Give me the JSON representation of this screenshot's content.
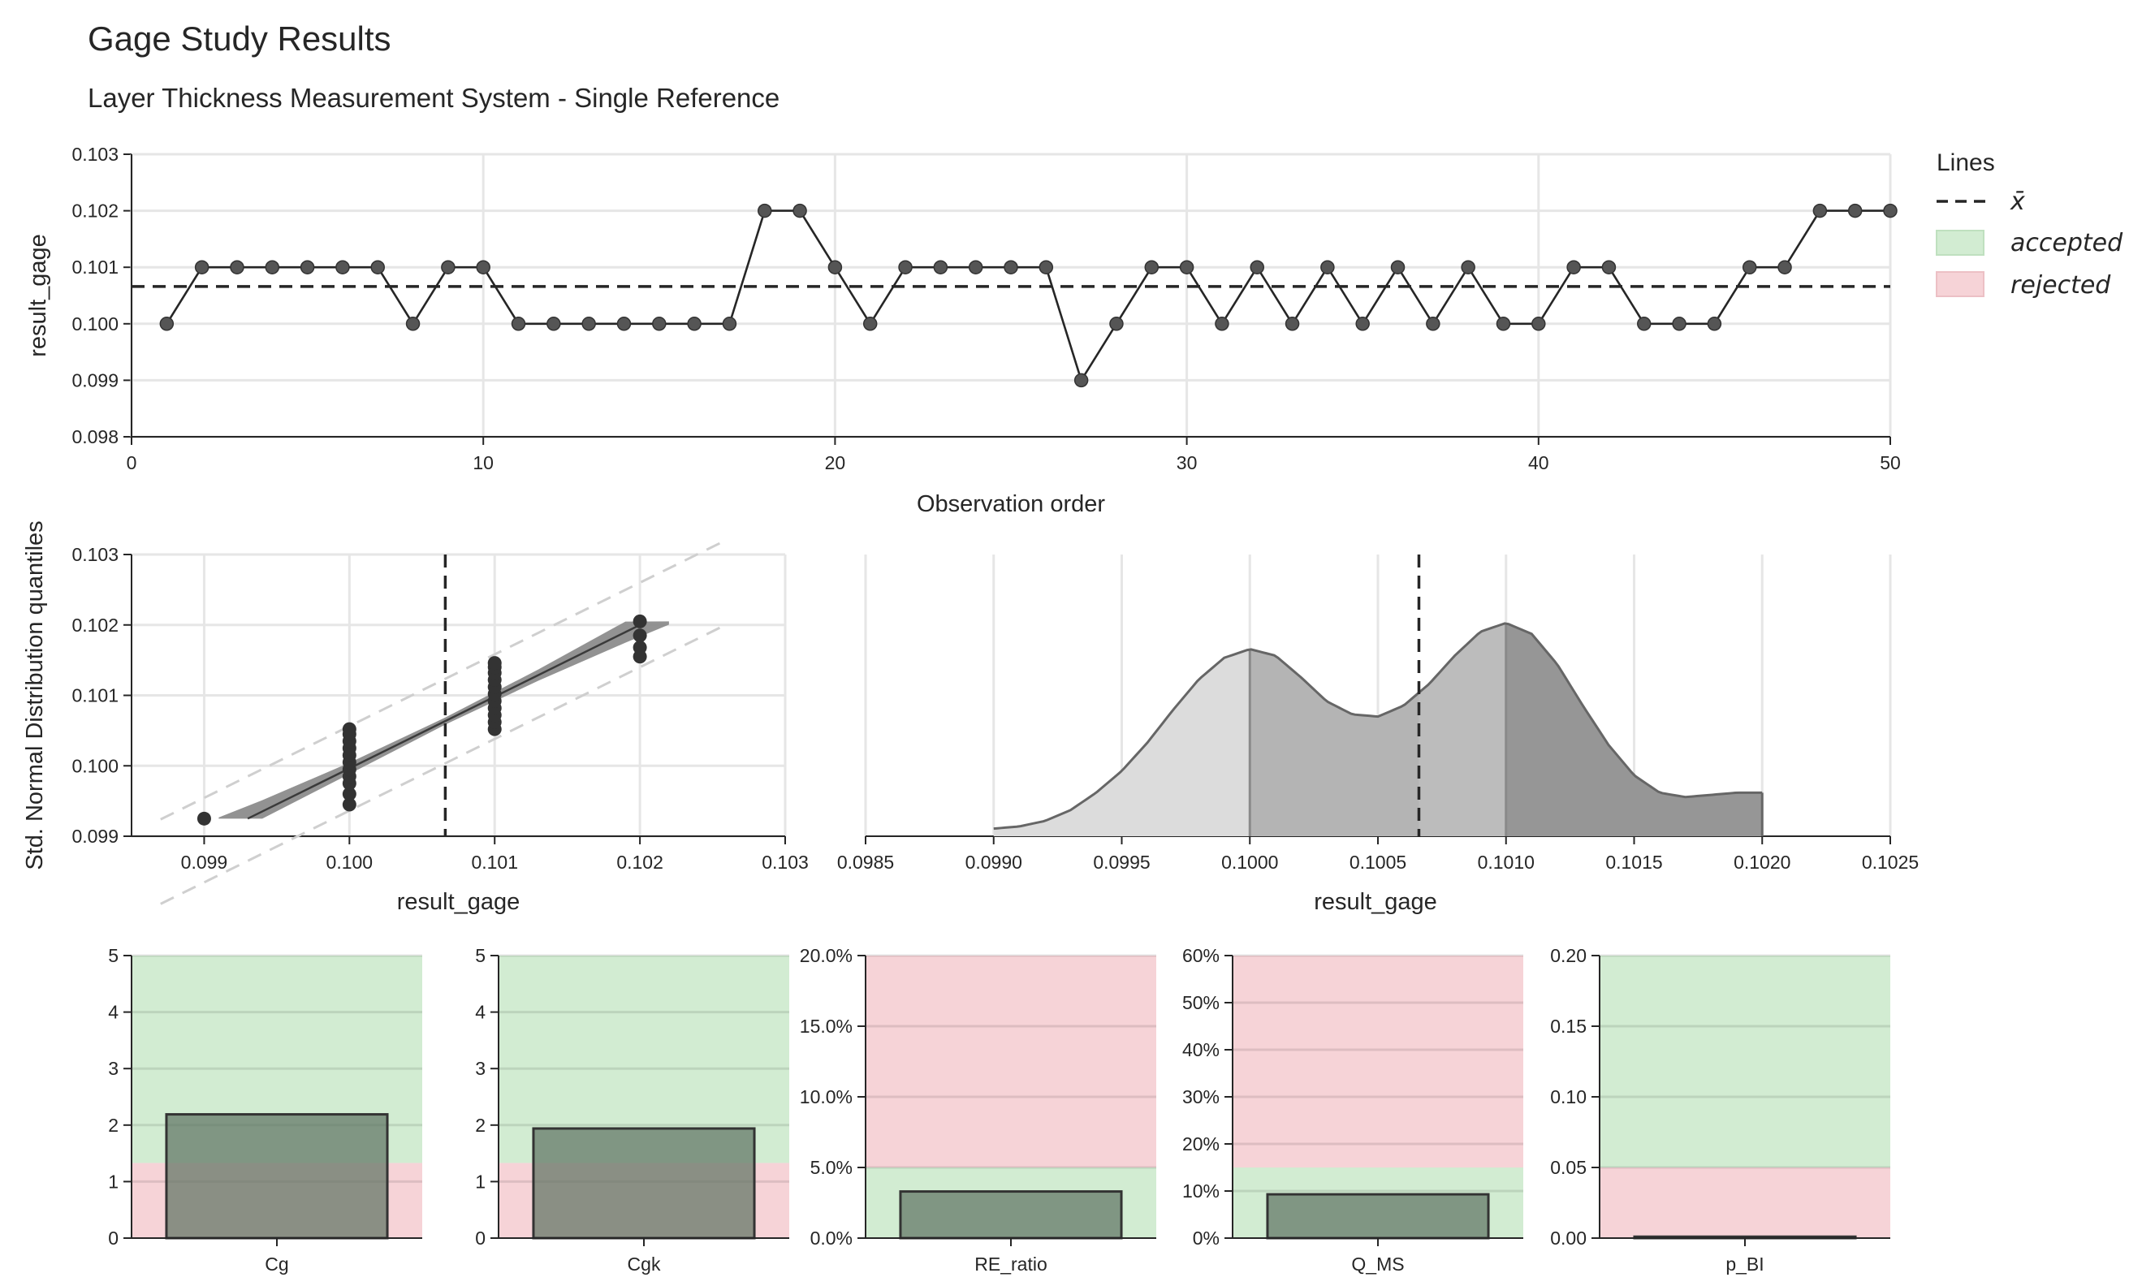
{
  "title": "Gage Study Results",
  "subtitle": "Layer Thickness Measurement System - Single Reference",
  "legend": {
    "title": "Lines",
    "items": [
      {
        "label": "x̄",
        "kind": "dashed-line",
        "color": "#262626"
      },
      {
        "label": "accepted",
        "kind": "patch",
        "color": "#d2ecd2"
      },
      {
        "label": "rejected",
        "kind": "patch",
        "color": "#f6d3d7"
      }
    ]
  },
  "colors": {
    "accepted": "#d2ecd2",
    "rejected": "#f6d3d7",
    "line": "#262626",
    "marker": "#555555",
    "bar": "#6e8a74",
    "grid": "#e6e6e6"
  },
  "chart_data": [
    {
      "type": "line",
      "name": "run-chart",
      "xlabel": "Observation order",
      "ylabel": "result_gage",
      "xlim": [
        0,
        50
      ],
      "ylim": [
        0.098,
        0.103
      ],
      "xticks": [
        0,
        10,
        20,
        30,
        40,
        50
      ],
      "xtick_labels": [
        "0",
        "10",
        "20",
        "30",
        "40",
        "50"
      ],
      "yticks": [
        0.098,
        0.099,
        0.1,
        0.101,
        0.102,
        0.103
      ],
      "ytick_labels": [
        "0.098",
        "0.099",
        "0.100",
        "0.101",
        "0.102",
        "0.103"
      ],
      "mean": 0.10066,
      "x": [
        1,
        2,
        3,
        4,
        5,
        6,
        7,
        8,
        9,
        10,
        11,
        12,
        13,
        14,
        15,
        16,
        17,
        18,
        19,
        20,
        21,
        22,
        23,
        24,
        25,
        26,
        27,
        28,
        29,
        30,
        31,
        32,
        33,
        34,
        35,
        36,
        37,
        38,
        39,
        40,
        41,
        42,
        43,
        44,
        45,
        46,
        47,
        48,
        49,
        50
      ],
      "y": [
        0.1,
        0.101,
        0.101,
        0.101,
        0.101,
        0.101,
        0.101,
        0.1,
        0.101,
        0.101,
        0.1,
        0.1,
        0.1,
        0.1,
        0.1,
        0.1,
        0.1,
        0.102,
        0.102,
        0.101,
        0.1,
        0.101,
        0.101,
        0.101,
        0.101,
        0.101,
        0.099,
        0.1,
        0.101,
        0.101,
        0.1,
        0.101,
        0.1,
        0.101,
        0.1,
        0.101,
        0.1,
        0.101,
        0.1,
        0.1,
        0.101,
        0.101,
        0.1,
        0.1,
        0.1,
        0.101,
        0.101,
        0.102,
        0.102,
        0.102
      ]
    },
    {
      "type": "scatter",
      "name": "probability-plot",
      "xlabel": "result_gage",
      "ylabel": "Std. Normal Distribution quantiles",
      "xlim": [
        0.0985,
        0.103
      ],
      "ylim": [
        0.099,
        0.103
      ],
      "xticks": [
        0.099,
        0.1,
        0.101,
        0.102,
        0.103
      ],
      "xtick_labels": [
        "0.099",
        "0.100",
        "0.101",
        "0.102",
        "0.103"
      ],
      "yticks": [
        0.099,
        0.1,
        0.101,
        0.102,
        0.103
      ],
      "ytick_labels": [
        "0.099",
        "0.100",
        "0.101",
        "0.102",
        "0.103"
      ],
      "mean": 0.10066,
      "fit_line": {
        "x": [
          0.0993,
          0.102
        ],
        "y": [
          0.09925,
          0.102
        ]
      },
      "confidence_band": {
        "x": [
          0.0991,
          0.1022
        ],
        "lower": [
          0.09925,
          0.102
        ],
        "upper": [
          0.09925,
          0.102
        ]
      },
      "tolerance_lines": {
        "offset": 0.0006
      },
      "points": {
        "0.099": [
          0.09925
        ],
        "0.1": [
          0.09945,
          0.0996,
          0.09975,
          0.09985,
          0.09995,
          0.10005,
          0.10015,
          0.10025,
          0.10035,
          0.10045,
          0.10052
        ],
        "0.101": [
          0.10052,
          0.10062,
          0.10072,
          0.10082,
          0.10092,
          0.10102,
          0.10112,
          0.10122,
          0.10132,
          0.1014,
          0.10146
        ],
        "0.102": [
          0.10155,
          0.10168,
          0.10185,
          0.10205
        ]
      }
    },
    {
      "type": "area",
      "name": "kde-plot",
      "xlabel": "result_gage",
      "xlim": [
        0.0985,
        0.1025
      ],
      "xticks": [
        0.0985,
        0.099,
        0.0995,
        0.1,
        0.1005,
        0.101,
        0.1015,
        0.102,
        0.1025
      ],
      "xtick_labels": [
        "0.0985",
        "0.0990",
        "0.0995",
        "0.1000",
        "0.1005",
        "0.1010",
        "0.1015",
        "0.1020",
        "0.1025"
      ],
      "mean": 0.10066,
      "x": [
        0.099,
        0.0991,
        0.0992,
        0.0993,
        0.0994,
        0.0995,
        0.0996,
        0.0997,
        0.0998,
        0.0999,
        0.1,
        0.1001,
        0.1002,
        0.1003,
        0.1004,
        0.1005,
        0.1006,
        0.1007,
        0.1008,
        0.1009,
        0.101,
        0.1011,
        0.1012,
        0.1013,
        0.1014,
        0.1015,
        0.1016,
        0.1017,
        0.1018,
        0.1019,
        0.102
      ],
      "density": [
        0.035,
        0.045,
        0.07,
        0.12,
        0.2,
        0.3,
        0.43,
        0.58,
        0.72,
        0.82,
        0.86,
        0.83,
        0.73,
        0.62,
        0.56,
        0.55,
        0.6,
        0.7,
        0.83,
        0.94,
        0.98,
        0.93,
        0.79,
        0.6,
        0.42,
        0.28,
        0.2,
        0.18,
        0.19,
        0.2,
        0.2
      ],
      "segments": [
        {
          "from": 0.099,
          "to": 0.1,
          "color": "#dcdcdc"
        },
        {
          "from": 0.1,
          "to": 0.10066,
          "color": "#b4b4b4"
        },
        {
          "from": 0.10066,
          "to": 0.101,
          "color": "#bcbcbc"
        },
        {
          "from": 0.101,
          "to": 0.102,
          "color": "#969696"
        }
      ]
    },
    {
      "type": "bar",
      "name": "capability-Cg",
      "categories": [
        "Cg"
      ],
      "values": [
        2.19
      ],
      "ylim": [
        0,
        5
      ],
      "yticks": [
        0,
        1,
        2,
        3,
        4,
        5
      ],
      "ytick_labels": [
        "0",
        "1",
        "2",
        "3",
        "4",
        "5"
      ],
      "regions": [
        {
          "from": 0,
          "to": 1.33,
          "status": "rejected"
        },
        {
          "from": 1.33,
          "to": 5,
          "status": "accepted"
        }
      ]
    },
    {
      "type": "bar",
      "name": "capability-Cgk",
      "categories": [
        "Cgk"
      ],
      "values": [
        1.94
      ],
      "ylim": [
        0,
        5
      ],
      "yticks": [
        0,
        1,
        2,
        3,
        4,
        5
      ],
      "ytick_labels": [
        "0",
        "1",
        "2",
        "3",
        "4",
        "5"
      ],
      "regions": [
        {
          "from": 0,
          "to": 1.33,
          "status": "rejected"
        },
        {
          "from": 1.33,
          "to": 5,
          "status": "accepted"
        }
      ]
    },
    {
      "type": "bar",
      "name": "capability-RE_ratio",
      "categories": [
        "RE_ratio"
      ],
      "values": [
        0.033
      ],
      "ylim": [
        0,
        0.2
      ],
      "yticks": [
        0,
        0.05,
        0.1,
        0.15,
        0.2
      ],
      "ytick_labels": [
        "0.0%",
        "5.0%",
        "10.0%",
        "15.0%",
        "20.0%"
      ],
      "regions": [
        {
          "from": 0,
          "to": 0.05,
          "status": "accepted"
        },
        {
          "from": 0.05,
          "to": 0.2,
          "status": "rejected"
        }
      ]
    },
    {
      "type": "bar",
      "name": "capability-Q_MS",
      "categories": [
        "Q_MS"
      ],
      "values": [
        0.093
      ],
      "ylim": [
        0,
        0.6
      ],
      "yticks": [
        0,
        0.1,
        0.2,
        0.3,
        0.4,
        0.5,
        0.6
      ],
      "ytick_labels": [
        "0%",
        "10%",
        "20%",
        "30%",
        "40%",
        "50%",
        "60%"
      ],
      "regions": [
        {
          "from": 0,
          "to": 0.15,
          "status": "accepted"
        },
        {
          "from": 0.15,
          "to": 0.6,
          "status": "rejected"
        }
      ]
    },
    {
      "type": "bar",
      "name": "capability-p_BI",
      "categories": [
        "p_BI"
      ],
      "values": [
        0.001
      ],
      "ylim": [
        0,
        0.2
      ],
      "yticks": [
        0,
        0.05,
        0.1,
        0.15,
        0.2
      ],
      "ytick_labels": [
        "0.00",
        "0.05",
        "0.10",
        "0.15",
        "0.20"
      ],
      "regions": [
        {
          "from": 0,
          "to": 0.05,
          "status": "rejected"
        },
        {
          "from": 0.05,
          "to": 0.2,
          "status": "accepted"
        }
      ]
    }
  ]
}
